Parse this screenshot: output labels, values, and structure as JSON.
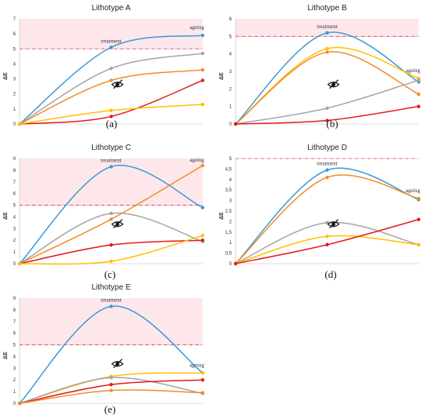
{
  "colors": {
    "blue": "#3a9ad9",
    "gray": "#a5a5a5",
    "orange": "#f28c28",
    "red": "#e31a1c",
    "yellow": "#ffc000",
    "threshold": "#d9303c",
    "shade": "#fde7ea"
  },
  "icons": {
    "visibility": "eye-slash-icon"
  },
  "chart_data": [
    {
      "type": "line",
      "title": "Lithotype A",
      "panel_label": "(a)",
      "ylabel": "ΔE",
      "ylim": [
        0,
        7
      ],
      "yticks": [
        "0",
        "1",
        "2",
        "3",
        "4",
        "5",
        "6",
        "7"
      ],
      "threshold": 5,
      "annotations": [
        "treatment",
        "ageing"
      ],
      "x": [
        0,
        1,
        2
      ],
      "series": [
        {
          "color": "blue",
          "values": [
            0,
            5.1,
            5.9
          ]
        },
        {
          "color": "gray",
          "values": [
            0,
            3.7,
            4.7
          ]
        },
        {
          "color": "orange",
          "values": [
            0,
            2.9,
            3.6
          ]
        },
        {
          "color": "red",
          "values": [
            0,
            0.5,
            2.9
          ]
        },
        {
          "color": "yellow",
          "values": [
            0,
            0.9,
            1.3
          ]
        }
      ]
    },
    {
      "type": "line",
      "title": "Lithotype B",
      "panel_label": "(b)",
      "ylabel": "ΔE",
      "ylim": [
        0,
        6
      ],
      "yticks": [
        "0",
        "1",
        "2",
        "3",
        "4",
        "5",
        "6"
      ],
      "threshold": 5,
      "annotations": [
        "treatment",
        "ageing"
      ],
      "x": [
        0,
        1,
        2
      ],
      "series": [
        {
          "color": "blue",
          "values": [
            0,
            5.2,
            2.4
          ]
        },
        {
          "color": "yellow",
          "values": [
            0,
            4.3,
            2.6
          ]
        },
        {
          "color": "orange",
          "values": [
            0,
            4.1,
            1.7
          ]
        },
        {
          "color": "gray",
          "values": [
            0,
            0.9,
            2.5
          ]
        },
        {
          "color": "red",
          "values": [
            0,
            0.2,
            1.0
          ]
        }
      ]
    },
    {
      "type": "line",
      "title": "Lithotype C",
      "panel_label": "(c)",
      "ylabel": "ΔE",
      "ylim": [
        0,
        9
      ],
      "yticks": [
        "0",
        "1",
        "2",
        "3",
        "4",
        "5",
        "6",
        "7",
        "8",
        "9"
      ],
      "threshold": 5,
      "annotations": [
        "treatment",
        "ageing"
      ],
      "x": [
        0,
        1,
        2
      ],
      "series": [
        {
          "color": "blue",
          "values": [
            0,
            8.3,
            4.8
          ]
        },
        {
          "color": "orange",
          "values": [
            0,
            3.8,
            8.4
          ]
        },
        {
          "color": "gray",
          "values": [
            0,
            4.3,
            1.9
          ]
        },
        {
          "color": "red",
          "values": [
            0,
            1.6,
            2.0
          ]
        },
        {
          "color": "yellow",
          "values": [
            0,
            0.2,
            2.4
          ]
        }
      ]
    },
    {
      "type": "line",
      "title": "Lithotype D",
      "panel_label": "(d)",
      "ylabel": "ΔE",
      "ylim": [
        0,
        5
      ],
      "yticks": [
        "0",
        "0,5",
        "1",
        "1,5",
        "2",
        "2,5",
        "3",
        "3,5",
        "4",
        "4,5",
        "5"
      ],
      "threshold": 5,
      "annotations": [
        "treatment",
        "ageing"
      ],
      "x": [
        0,
        1,
        2
      ],
      "series": [
        {
          "color": "blue",
          "values": [
            0,
            4.45,
            3.05
          ]
        },
        {
          "color": "orange",
          "values": [
            0,
            4.1,
            3.1
          ]
        },
        {
          "color": "gray",
          "values": [
            0,
            1.95,
            0.9
          ]
        },
        {
          "color": "yellow",
          "values": [
            0,
            1.3,
            0.9
          ]
        },
        {
          "color": "red",
          "values": [
            0,
            0.9,
            2.1
          ]
        }
      ]
    },
    {
      "type": "line",
      "title": "Lithotype E",
      "panel_label": "(e)",
      "ylabel": "ΔE",
      "ylim": [
        0,
        9
      ],
      "yticks": [
        "0",
        "1",
        "2",
        "3",
        "4",
        "5",
        "6",
        "7",
        "8",
        "9"
      ],
      "threshold": 5,
      "annotations": [
        "treatment",
        "ageing"
      ],
      "x": [
        0,
        1,
        2
      ],
      "series": [
        {
          "color": "blue",
          "values": [
            0,
            8.3,
            2.6
          ]
        },
        {
          "color": "yellow",
          "values": [
            0,
            2.3,
            2.6
          ]
        },
        {
          "color": "gray",
          "values": [
            0,
            2.2,
            0.85
          ]
        },
        {
          "color": "red",
          "values": [
            0,
            1.6,
            2.0
          ]
        },
        {
          "color": "orange",
          "values": [
            0,
            1.1,
            0.9
          ]
        }
      ]
    }
  ]
}
